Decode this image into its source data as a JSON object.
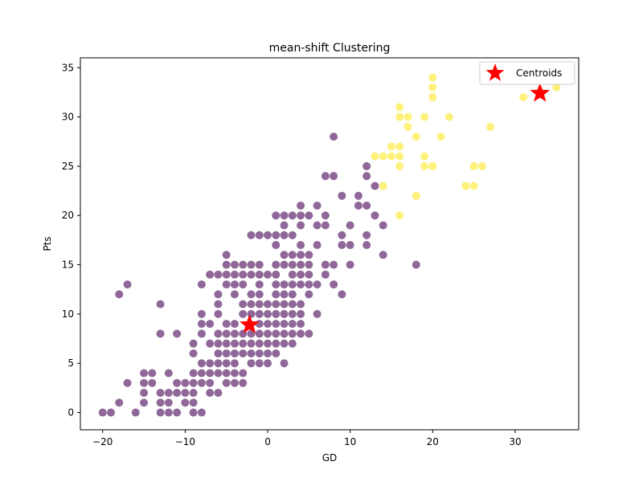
{
  "chart_data": {
    "type": "scatter",
    "title": "mean-shift Clustering",
    "xlabel": "GD",
    "ylabel": "Pts",
    "xlim": [
      -22.7,
      37.7
    ],
    "ylim": [
      -1.75,
      36.0
    ],
    "xticks": [
      -20,
      -10,
      0,
      10,
      20,
      30
    ],
    "yticks": [
      0,
      5,
      10,
      15,
      20,
      25,
      30,
      35
    ],
    "grid": false,
    "legend": {
      "location": "top-right",
      "entries": [
        "Centroids"
      ]
    },
    "colors": {
      "cluster_0": "#440154",
      "cluster_1": "#fde725",
      "centroid": "#ff0000"
    },
    "point_alpha": 0.6,
    "series": [
      {
        "cluster": 0,
        "points": [
          [
            -20,
            0
          ],
          [
            -19,
            0
          ],
          [
            -18,
            1
          ],
          [
            -16,
            0
          ],
          [
            -17,
            3
          ],
          [
            -15,
            4
          ],
          [
            -14,
            4
          ],
          [
            -15,
            3
          ],
          [
            -14,
            3
          ],
          [
            -15,
            2
          ],
          [
            -13,
            2
          ],
          [
            -15,
            1
          ],
          [
            -13,
            1
          ],
          [
            -12,
            1
          ],
          [
            -13,
            0
          ],
          [
            -12,
            0
          ],
          [
            -11,
            0
          ],
          [
            -12,
            2
          ],
          [
            -11,
            2
          ],
          [
            -10,
            2
          ],
          [
            -11,
            3
          ],
          [
            -10,
            3
          ],
          [
            -12,
            4
          ],
          [
            -10,
            1
          ],
          [
            -9,
            1
          ],
          [
            -9,
            2
          ],
          [
            -8,
            0
          ],
          [
            -9,
            0
          ],
          [
            -18,
            12
          ],
          [
            -17,
            13
          ],
          [
            -13,
            11
          ],
          [
            -13,
            8
          ],
          [
            -11,
            8
          ],
          [
            -9,
            6
          ],
          [
            -9,
            7
          ],
          [
            -8,
            8
          ],
          [
            -8,
            9
          ],
          [
            -8,
            10
          ],
          [
            -8,
            13
          ],
          [
            -7,
            9
          ],
          [
            -7,
            14
          ],
          [
            -6,
            14
          ],
          [
            -5,
            15
          ],
          [
            -5,
            16
          ],
          [
            -4,
            15
          ],
          [
            -3,
            15
          ],
          [
            -2,
            15
          ],
          [
            -1,
            15
          ],
          [
            -9,
            3
          ],
          [
            -9,
            4
          ],
          [
            -8,
            3
          ],
          [
            -8,
            4
          ],
          [
            -8,
            5
          ],
          [
            -7,
            2
          ],
          [
            -7,
            3
          ],
          [
            -7,
            4
          ],
          [
            -7,
            5
          ],
          [
            -7,
            7
          ],
          [
            -6,
            2
          ],
          [
            -6,
            4
          ],
          [
            -6,
            5
          ],
          [
            -6,
            6
          ],
          [
            -6,
            7
          ],
          [
            -6,
            8
          ],
          [
            -6,
            10
          ],
          [
            -6,
            11
          ],
          [
            -6,
            12
          ],
          [
            -5,
            3
          ],
          [
            -5,
            4
          ],
          [
            -5,
            5
          ],
          [
            -5,
            6
          ],
          [
            -5,
            7
          ],
          [
            -5,
            8
          ],
          [
            -5,
            9
          ],
          [
            -5,
            13
          ],
          [
            -5,
            14
          ],
          [
            -4,
            3
          ],
          [
            -4,
            4
          ],
          [
            -4,
            5
          ],
          [
            -4,
            6
          ],
          [
            -4,
            7
          ],
          [
            -4,
            8
          ],
          [
            -4,
            9
          ],
          [
            -4,
            12
          ],
          [
            -4,
            13
          ],
          [
            -4,
            14
          ],
          [
            -3,
            3
          ],
          [
            -3,
            4
          ],
          [
            -3,
            6
          ],
          [
            -3,
            7
          ],
          [
            -3,
            8
          ],
          [
            -3,
            10
          ],
          [
            -3,
            11
          ],
          [
            -3,
            13
          ],
          [
            -3,
            14
          ],
          [
            -2,
            5
          ],
          [
            -2,
            6
          ],
          [
            -2,
            7
          ],
          [
            -2,
            8
          ],
          [
            -2,
            10
          ],
          [
            -2,
            11
          ],
          [
            -2,
            12
          ],
          [
            -2,
            14
          ],
          [
            -2,
            18
          ],
          [
            -1,
            5
          ],
          [
            -1,
            6
          ],
          [
            -1,
            7
          ],
          [
            -1,
            8
          ],
          [
            -1,
            9
          ],
          [
            -1,
            10
          ],
          [
            -1,
            11
          ],
          [
            -1,
            12
          ],
          [
            -1,
            13
          ],
          [
            -1,
            14
          ],
          [
            -1,
            18
          ],
          [
            0,
            5
          ],
          [
            0,
            6
          ],
          [
            0,
            7
          ],
          [
            0,
            8
          ],
          [
            0,
            9
          ],
          [
            0,
            10
          ],
          [
            0,
            11
          ],
          [
            0,
            14
          ],
          [
            0,
            18
          ],
          [
            1,
            6
          ],
          [
            1,
            7
          ],
          [
            1,
            8
          ],
          [
            1,
            9
          ],
          [
            1,
            10
          ],
          [
            1,
            11
          ],
          [
            1,
            12
          ],
          [
            1,
            13
          ],
          [
            1,
            14
          ],
          [
            1,
            15
          ],
          [
            1,
            17
          ],
          [
            1,
            18
          ],
          [
            1,
            20
          ],
          [
            2,
            5
          ],
          [
            2,
            7
          ],
          [
            2,
            8
          ],
          [
            2,
            9
          ],
          [
            2,
            10
          ],
          [
            2,
            11
          ],
          [
            2,
            12
          ],
          [
            2,
            13
          ],
          [
            2,
            15
          ],
          [
            2,
            16
          ],
          [
            2,
            18
          ],
          [
            2,
            19
          ],
          [
            2,
            20
          ],
          [
            3,
            7
          ],
          [
            3,
            8
          ],
          [
            3,
            9
          ],
          [
            3,
            10
          ],
          [
            3,
            11
          ],
          [
            3,
            12
          ],
          [
            3,
            13
          ],
          [
            3,
            14
          ],
          [
            3,
            15
          ],
          [
            3,
            16
          ],
          [
            3,
            18
          ],
          [
            3,
            20
          ],
          [
            4,
            8
          ],
          [
            4,
            9
          ],
          [
            4,
            10
          ],
          [
            4,
            11
          ],
          [
            4,
            13
          ],
          [
            4,
            14
          ],
          [
            4,
            15
          ],
          [
            4,
            16
          ],
          [
            4,
            17
          ],
          [
            4,
            19
          ],
          [
            4,
            20
          ],
          [
            4,
            21
          ],
          [
            5,
            8
          ],
          [
            5,
            12
          ],
          [
            5,
            13
          ],
          [
            5,
            14
          ],
          [
            5,
            15
          ],
          [
            5,
            16
          ],
          [
            5,
            20
          ],
          [
            6,
            10
          ],
          [
            6,
            13
          ],
          [
            6,
            17
          ],
          [
            6,
            19
          ],
          [
            6,
            21
          ],
          [
            7,
            14
          ],
          [
            7,
            15
          ],
          [
            7,
            19
          ],
          [
            7,
            20
          ],
          [
            7,
            24
          ],
          [
            8,
            13
          ],
          [
            8,
            15
          ],
          [
            8,
            28
          ],
          [
            8,
            24
          ],
          [
            9,
            12
          ],
          [
            9,
            17
          ],
          [
            9,
            18
          ],
          [
            9,
            22
          ],
          [
            10,
            15
          ],
          [
            10,
            17
          ],
          [
            10,
            19
          ],
          [
            11,
            21
          ],
          [
            11,
            22
          ],
          [
            12,
            17
          ],
          [
            12,
            18
          ],
          [
            12,
            21
          ],
          [
            12,
            24
          ],
          [
            12,
            25
          ],
          [
            13,
            20
          ],
          [
            13,
            23
          ],
          [
            14,
            16
          ],
          [
            14,
            19
          ],
          [
            18,
            15
          ]
        ]
      },
      {
        "cluster": 1,
        "points": [
          [
            13,
            26
          ],
          [
            14,
            23
          ],
          [
            14,
            26
          ],
          [
            15,
            26
          ],
          [
            15,
            27
          ],
          [
            16,
            25
          ],
          [
            16,
            26
          ],
          [
            16,
            27
          ],
          [
            16,
            30
          ],
          [
            16,
            31
          ],
          [
            16,
            20
          ],
          [
            17,
            29
          ],
          [
            17,
            30
          ],
          [
            18,
            22
          ],
          [
            18,
            28
          ],
          [
            19,
            25
          ],
          [
            19,
            26
          ],
          [
            19,
            30
          ],
          [
            20,
            25
          ],
          [
            20,
            32
          ],
          [
            20,
            33
          ],
          [
            20,
            34
          ],
          [
            21,
            28
          ],
          [
            22,
            30
          ],
          [
            24,
            23
          ],
          [
            25,
            23
          ],
          [
            25,
            25
          ],
          [
            26,
            25
          ],
          [
            27,
            29
          ],
          [
            31,
            32
          ],
          [
            35,
            33
          ]
        ]
      }
    ],
    "centroids": [
      [
        -2.2,
        8.9
      ],
      [
        33.0,
        32.4
      ]
    ]
  }
}
